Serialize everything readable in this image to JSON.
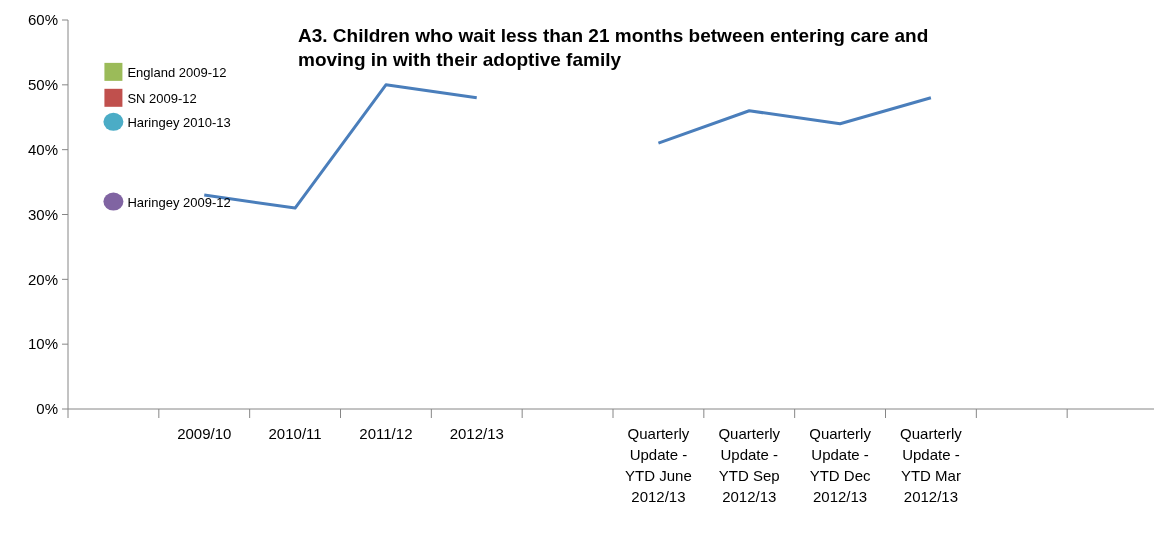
{
  "chart_data": {
    "type": "line",
    "title": "A3.  Children who wait less than 21 months between entering care and moving in with their adoptive family",
    "categories": [
      null,
      "2009/10",
      "2010/11",
      "2011/12",
      "2012/13",
      null,
      "Quarterly Update - YTD June 2012/13",
      "Quarterly Update - YTD Sep 2012/13",
      "Quarterly Update - YTD Dec 2012/13",
      "Quarterly Update - YTD Mar 2012/13",
      null,
      null
    ],
    "series": [
      {
        "color": "#4a7ebb",
        "values": [
          null,
          0.33,
          0.31,
          0.5,
          0.48,
          null,
          0.41,
          0.46,
          0.44,
          0.48,
          null,
          null
        ]
      },
      {
        "name": "England 2009-12",
        "type": "scatter",
        "marker": "square",
        "color": "#9bbb59",
        "values": [
          0.52,
          null,
          null,
          null,
          null,
          null,
          null,
          null,
          null,
          null,
          null,
          null
        ]
      },
      {
        "name": "SN 2009-12",
        "type": "scatter",
        "marker": "square",
        "color": "#c0504d",
        "values": [
          0.48,
          null,
          null,
          null,
          null,
          null,
          null,
          null,
          null,
          null,
          null,
          null
        ]
      },
      {
        "name": "Haringey 2010-13",
        "type": "scatter",
        "marker": "circle",
        "color": "#4bacc6",
        "values": [
          0.443,
          null,
          null,
          null,
          null,
          null,
          null,
          null,
          null,
          null,
          null,
          null
        ]
      },
      {
        "name": "Haringey 2009-12",
        "type": "scatter",
        "marker": "circle",
        "color": "#8064a2",
        "values": [
          0.32,
          null,
          null,
          null,
          null,
          null,
          null,
          null,
          null,
          null,
          null,
          null
        ]
      }
    ],
    "ylim": [
      0,
      0.6
    ],
    "yticks": [
      {
        "value": 0,
        "label": "0%"
      },
      {
        "value": 0.1,
        "label": "10%"
      },
      {
        "value": 0.2,
        "label": "20%"
      },
      {
        "value": 0.3,
        "label": "30%"
      },
      {
        "value": 0.4,
        "label": "40%"
      },
      {
        "value": 0.5,
        "label": "50%"
      },
      {
        "value": 0.6,
        "label": "60%"
      }
    ],
    "grid": false
  }
}
